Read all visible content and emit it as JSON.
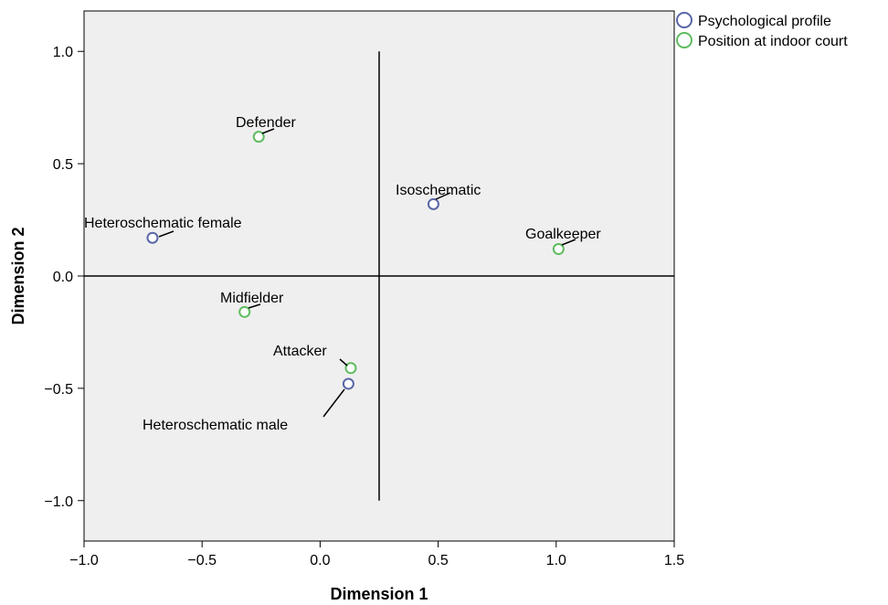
{
  "chart_data": {
    "type": "scatter",
    "title": "",
    "xlabel": "Dimension 1",
    "ylabel": "Dimension 2",
    "xlim": [
      -1.0,
      1.5
    ],
    "ylim": [
      -1.18,
      1.18
    ],
    "xticks": [
      -1.0,
      -0.5,
      0.0,
      0.5,
      1.0,
      1.5
    ],
    "xtick_labels": [
      "−1.0",
      "−0.5",
      "0.0",
      "0.5",
      "1.0",
      "1.5"
    ],
    "yticks": [
      1.0,
      0.5,
      0.0,
      -0.5,
      -1.0
    ],
    "ytick_labels": [
      "1.0",
      "0.5",
      "0.0",
      "−0.5",
      "−1.0"
    ],
    "grid": false,
    "background_color": "#efefef",
    "reference_lines": {
      "horizontal_y": 0.0,
      "vertical_x": 0.25,
      "vertical_range": [
        -1.0,
        1.0
      ]
    },
    "legend_position": "outside-top-right",
    "series": [
      {
        "name": "Psychological profile",
        "color": "#5a66a6",
        "points": [
          {
            "label": "Isoschematic",
            "x": 0.48,
            "y": 0.32
          },
          {
            "label": "Heteroschematic female",
            "x": -0.71,
            "y": 0.17
          },
          {
            "label": "Heteroschematic male",
            "x": 0.12,
            "y": -0.48
          }
        ]
      },
      {
        "name": "Position at indoor court",
        "color": "#5fbb5f",
        "points": [
          {
            "label": "Defender",
            "x": -0.26,
            "y": 0.62
          },
          {
            "label": "Goalkeeper",
            "x": 1.01,
            "y": 0.12
          },
          {
            "label": "Midfielder",
            "x": -0.32,
            "y": -0.16
          },
          {
            "label": "Attacker",
            "x": 0.13,
            "y": -0.41
          }
        ]
      }
    ]
  }
}
